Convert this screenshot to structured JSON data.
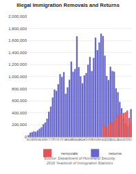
{
  "chart_data": {
    "type": "bar",
    "title": "Illegal Immigration Removals and Returns",
    "categories": [
      "'60",
      "'61",
      "'62",
      "'63",
      "'64",
      "'65",
      "'66",
      "'67",
      "'68",
      "'69",
      "'70",
      "'71",
      "'72",
      "'73",
      "'74",
      "'75",
      "'76",
      "'77",
      "'78",
      "'79",
      "'80",
      "'81",
      "'82",
      "'83",
      "'84",
      "'85",
      "'86",
      "'87",
      "'88",
      "'89",
      "'90",
      "'91",
      "'92",
      "'93",
      "'94",
      "'95",
      "'96",
      "'97",
      "'98",
      "'99",
      "'00",
      "'01",
      "'02",
      "'03",
      "'04",
      "'05",
      "'06",
      "'07",
      "'08",
      "'09",
      "'10",
      "'11",
      "'12",
      "'13",
      "'14",
      "'15"
    ],
    "series": [
      {
        "name": "removals",
        "color": "#e05555",
        "values": [
          0,
          0,
          0,
          0,
          0,
          0,
          0,
          0,
          0,
          0,
          0,
          0,
          0,
          0,
          0,
          0,
          0,
          0,
          0,
          0,
          0,
          0,
          0,
          0,
          0,
          0,
          0,
          0,
          0,
          0,
          0,
          0,
          0,
          0,
          0,
          0,
          0,
          0,
          0,
          0,
          188467,
          189026,
          165168,
          211448,
          240665,
          246431,
          280974,
          319382,
          369221,
          389834,
          382461,
          396906,
          409849,
          438421,
          315943,
          235413
        ]
      },
      {
        "name": "returns",
        "color": "#6666cc",
        "values": [
          30000,
          70000,
          80000,
          94000,
          86000,
          110000,
          138000,
          162000,
          212000,
          240000,
          303000,
          420000,
          505000,
          655000,
          788000,
          767000,
          875000,
          1042000,
          996000,
          1076000,
          719000,
          824000,
          950000,
          1251000,
          1082000,
          1128000,
          1671000,
          1158000,
          1008000,
          891000,
          1022000,
          1061000,
          1200000,
          1327000,
          1094000,
          1313000,
          1649000,
          1441000,
          1570000,
          1714000,
          1675000,
          1349000,
          1012000,
          945000,
          1166000,
          1096000,
          1084000,
          808000,
          742000,
          582000,
          476000,
          323000,
          229000,
          178000,
          163000,
          462000
        ]
      }
    ],
    "ylim": [
      0,
      2000000
    ],
    "yticks": [
      0,
      {
        "value": 200000,
        "label": "200,000"
      },
      {
        "value": 400000,
        "label": "400,000"
      },
      {
        "value": 600000,
        "label": "600,000"
      },
      {
        "value": 800000,
        "label": "800,000"
      },
      {
        "value": 1000000,
        "label": "1,000,000"
      },
      {
        "value": 1200000,
        "label": "1,200,000"
      },
      {
        "value": 1400000,
        "label": "1,400,000"
      },
      {
        "value": 1600000,
        "label": "1,600,000"
      },
      {
        "value": 1800000,
        "label": "1,800,000"
      },
      {
        "value": 2000000,
        "label": "2,000,000"
      }
    ],
    "grid": true,
    "legend": "bottom",
    "annotations": [
      "Source: Department of Homeland Security, 2016 Yearbook of Immigration Statistics"
    ]
  }
}
